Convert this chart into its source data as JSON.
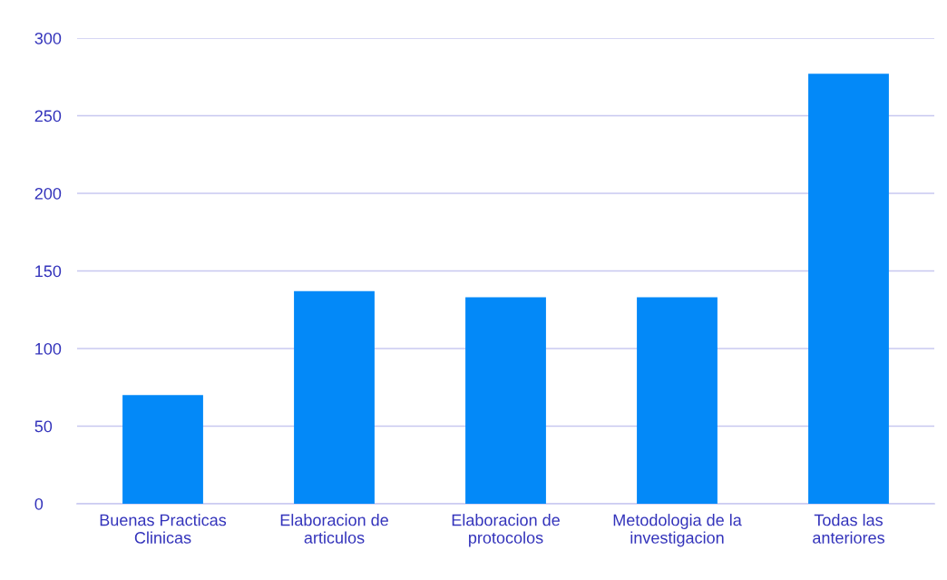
{
  "chart_data": {
    "type": "bar",
    "categories": [
      "Buenas Practicas\nClinicas",
      "Elaboracion de\narticulos",
      "Elaboracion de\nprotocolos",
      "Metodologia de la\ninvestigacion",
      "Todas las\nanteriores"
    ],
    "values": [
      70,
      137,
      133,
      133,
      277
    ],
    "color": "#0389f8",
    "ylim": [
      0,
      300
    ],
    "yticks": [
      0,
      50,
      100,
      150,
      200,
      250,
      300
    ],
    "grid": "y",
    "legend": false
  }
}
